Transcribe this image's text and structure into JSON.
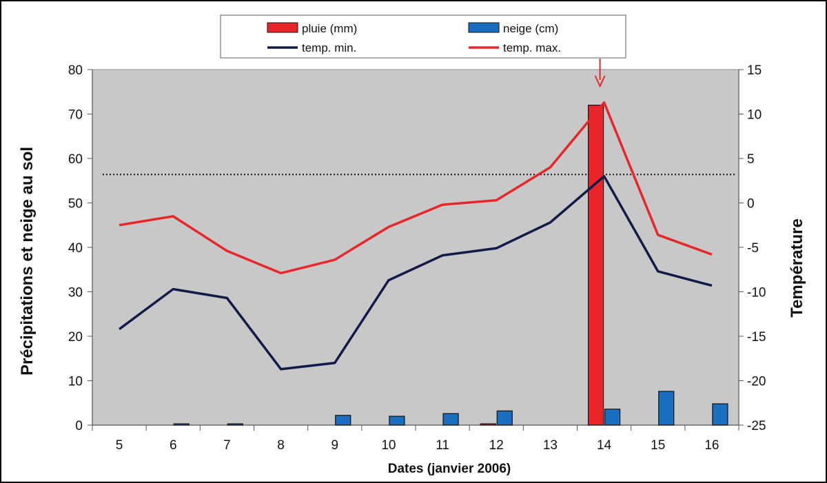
{
  "chart_data": {
    "type": "bar",
    "categories": [
      "5",
      "6",
      "7",
      "8",
      "9",
      "10",
      "11",
      "12",
      "13",
      "14",
      "15",
      "16"
    ],
    "xlabel": "Dates (janvier 2006)",
    "ylabel": "Précipitations et neige au sol",
    "y2label": "Température",
    "ylim": [
      0,
      80
    ],
    "y2lim": [
      -25,
      15
    ],
    "yticks": [
      0,
      10,
      20,
      30,
      40,
      50,
      60,
      70,
      80
    ],
    "y2ticks": [
      -25,
      -20,
      -15,
      -10,
      -5,
      0,
      5,
      10,
      15
    ],
    "grid": false,
    "legend_position": "top",
    "reference_line": {
      "axis": "y2",
      "value": 3.2,
      "style": "dotted"
    },
    "annotation": {
      "type": "arrow",
      "category": "14"
    },
    "bar_series": [
      {
        "name": "pluie (mm)",
        "color": "#e8262a",
        "values": [
          0,
          0,
          0,
          0,
          0,
          0,
          0,
          0.3,
          0,
          72,
          0,
          0
        ]
      },
      {
        "name": "neige (cm)",
        "color": "#1a6ec0",
        "values": [
          0,
          0.3,
          0.3,
          0,
          2.2,
          2.0,
          2.6,
          3.2,
          0,
          3.6,
          7.6,
          4.8
        ]
      }
    ],
    "line_series": [
      {
        "name": "temp. min.",
        "color": "#111a48",
        "axis": "y2",
        "values": [
          -14.2,
          -9.7,
          -10.7,
          -18.7,
          -18.0,
          -8.7,
          -5.9,
          -5.1,
          -2.2,
          3.0,
          -7.7,
          -9.3
        ]
      },
      {
        "name": "temp. max.",
        "color": "#e8262a",
        "axis": "y2",
        "values": [
          -2.5,
          -1.5,
          -5.4,
          -7.9,
          -6.4,
          -2.7,
          -0.2,
          0.3,
          4.0,
          11.3,
          -3.6,
          -5.8
        ]
      }
    ]
  }
}
